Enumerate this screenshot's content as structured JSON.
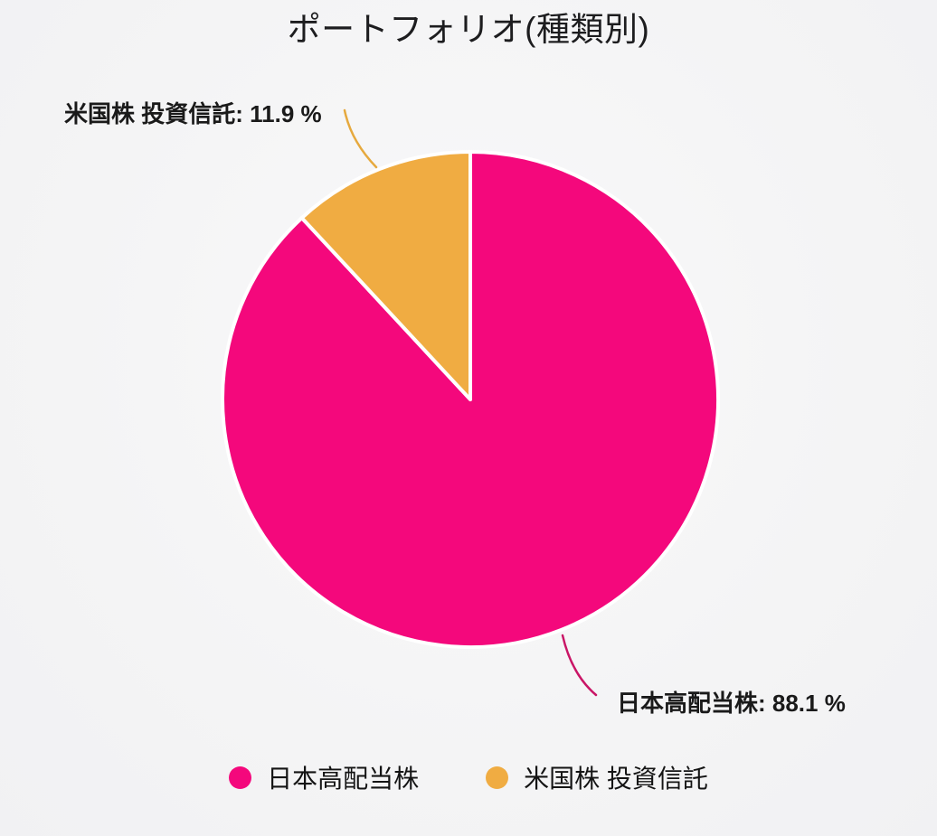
{
  "page": {
    "background": "#f4f4f5"
  },
  "chart_data": {
    "type": "pie",
    "title": "ポートフォリオ(種類別)",
    "categories": [
      "日本高配当株",
      "米国株 投資信託"
    ],
    "values": [
      88.1,
      11.9
    ],
    "unit": "%",
    "colors": [
      "#f4087c",
      "#f0ac42"
    ],
    "leader_line_colors": [
      "#c91566",
      "#e6a93e"
    ],
    "slice_stroke_color": "#ffffff",
    "start_angle_deg": 0,
    "direction": "clockwise",
    "legend_position": "bottom",
    "slice_callouts": [
      "日本高配当株: 88.1 %",
      "米国株 投資信託: 11.9 %"
    ],
    "legend": [
      {
        "label": "日本高配当株",
        "color": "#f4087c"
      },
      {
        "label": "米国株 投資信託",
        "color": "#f0ac42"
      }
    ]
  }
}
